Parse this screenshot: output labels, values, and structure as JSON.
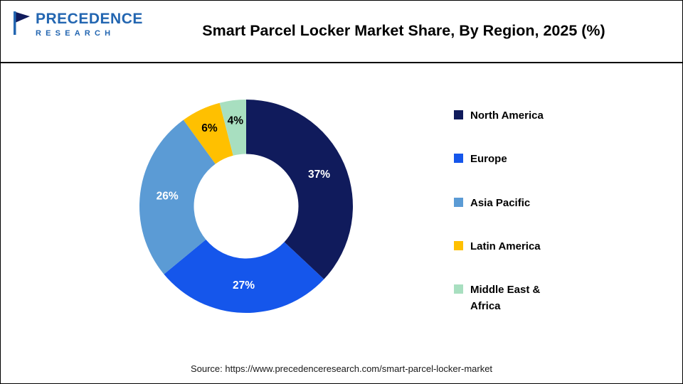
{
  "header": {
    "logo": {
      "line1": "PRECEDENCE",
      "line2": "RESEARCH"
    },
    "title": "Smart Parcel Locker Market Share, By Region, 2025 (%)"
  },
  "chart_data": {
    "type": "pie",
    "subtype": "donut",
    "title": "Smart Parcel Locker Market Share, By Region, 2025 (%)",
    "categories": [
      "North America",
      "Europe",
      "Asia Pacific",
      "Latin America",
      "Middle East & Africa"
    ],
    "values": [
      37,
      27,
      26,
      6,
      4
    ],
    "labels": [
      "37%",
      "27%",
      "26%",
      "6%",
      "4%"
    ],
    "colors": [
      "#101b5c",
      "#1556eb",
      "#5b9bd5",
      "#ffc000",
      "#a8dfc0"
    ],
    "label_colors": [
      "#ffffff",
      "#ffffff",
      "#ffffff",
      "#000000",
      "#000000"
    ],
    "unit": "%",
    "start_angle_deg": 0,
    "direction": "clockwise",
    "inner_radius_ratio": 0.49,
    "legend_position": "right"
  },
  "footer": {
    "source": "Source: https://www.precedenceresearch.com/smart-parcel-locker-market"
  }
}
